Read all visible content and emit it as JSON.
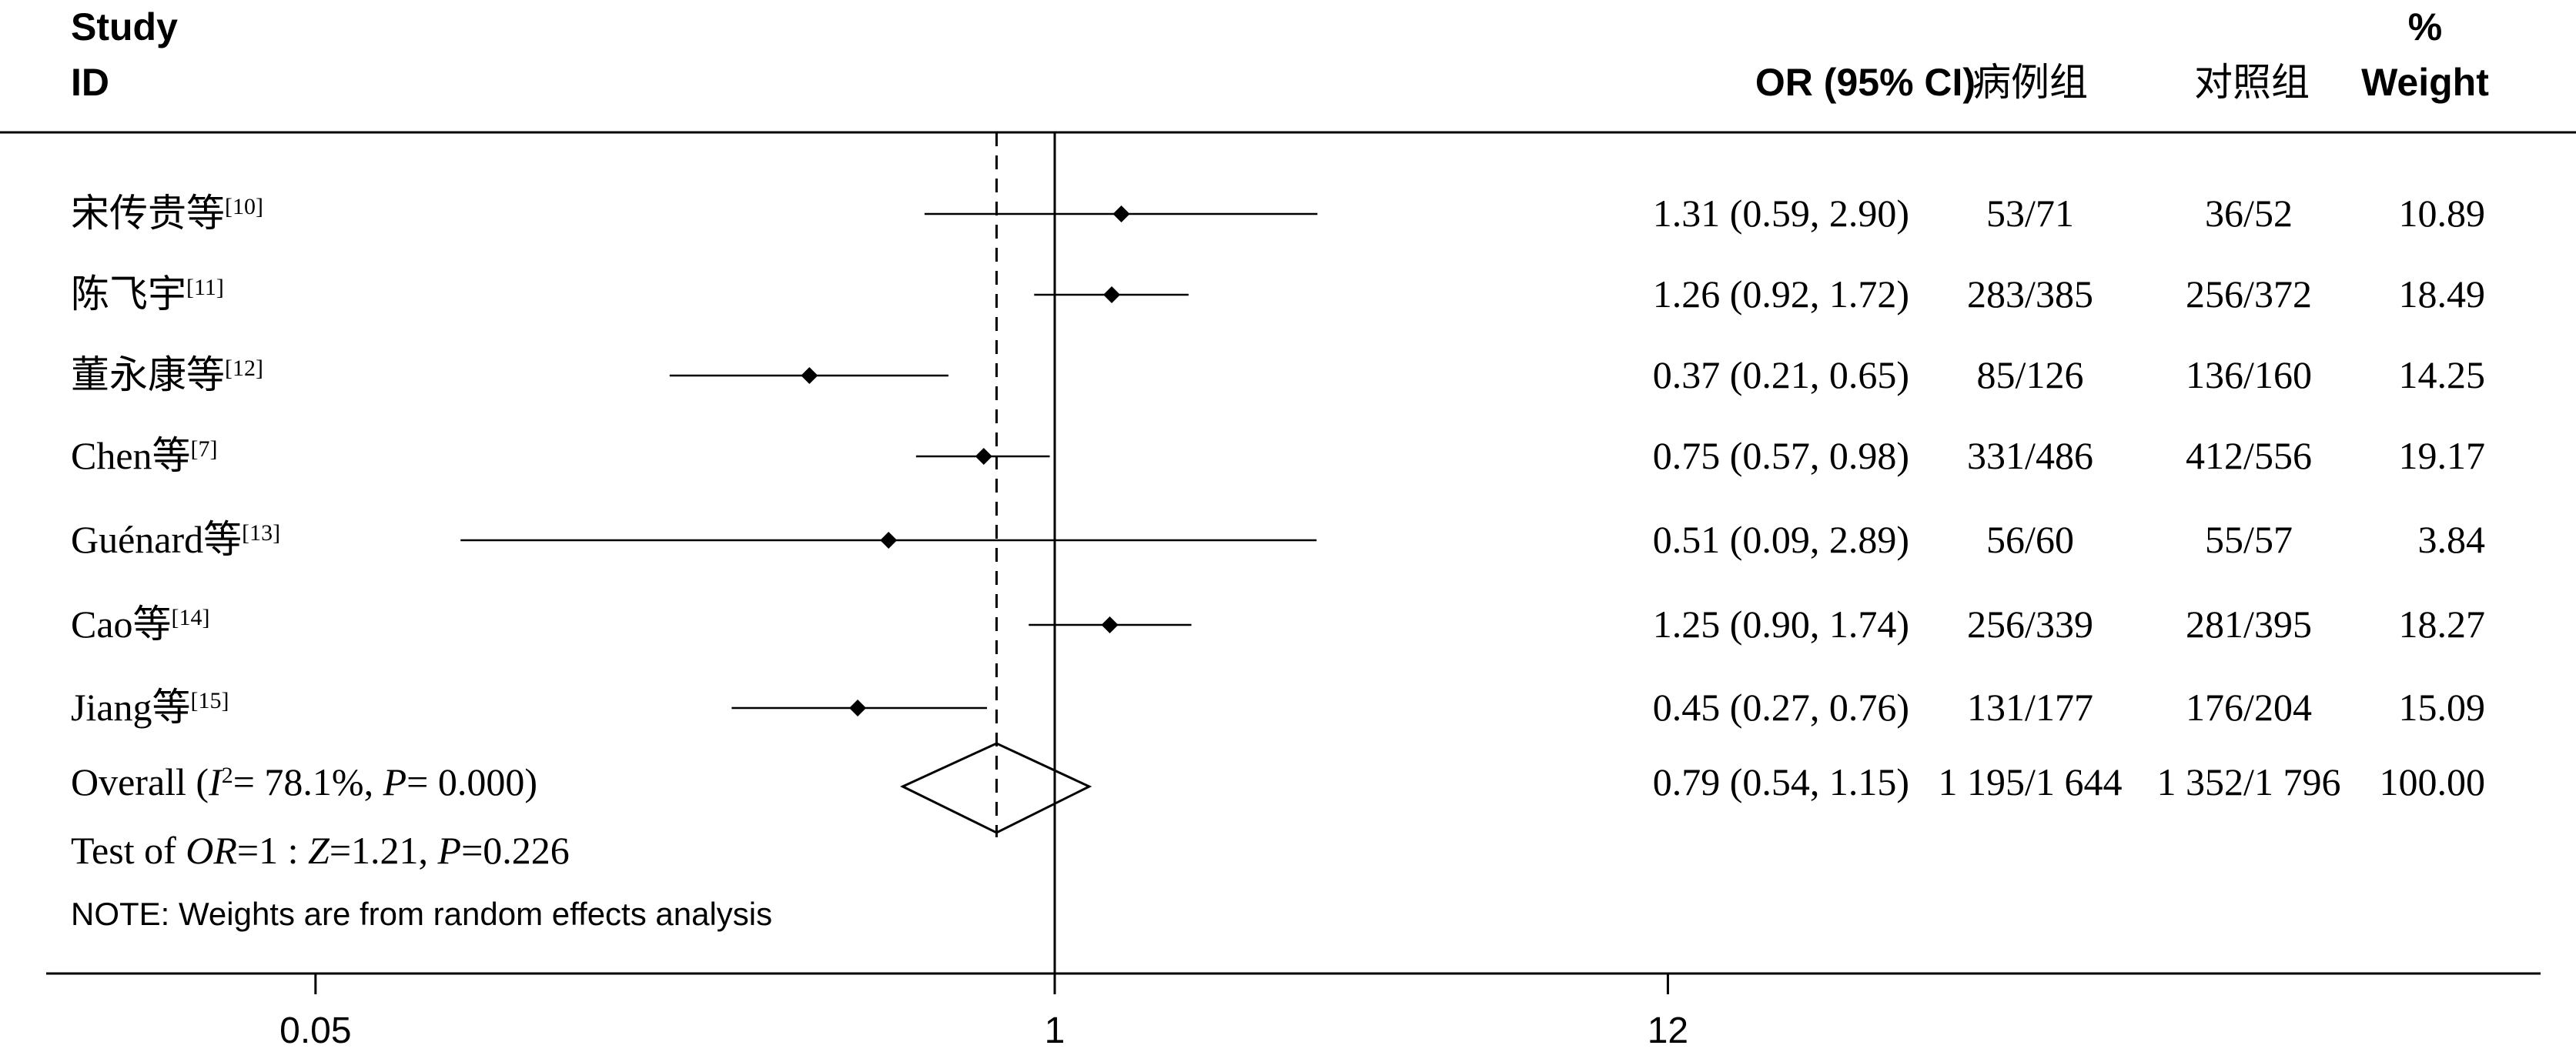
{
  "chart_data": {
    "type": "forest",
    "columns": {
      "study_line1": "Study",
      "study_line2": "ID",
      "or_ci": "OR (95% CI)",
      "case": "病例组",
      "control": "对照组",
      "weight_line1": "%",
      "weight_line2": "Weight"
    },
    "x_scale": "log",
    "x_ticks": [
      {
        "value": 0.05,
        "label": "0.05"
      },
      {
        "value": 1,
        "label": "1"
      },
      {
        "value": 12,
        "label": "12"
      }
    ],
    "null_value": 1,
    "overall_reference": 0.79,
    "studies": [
      {
        "name": "宋传贵等",
        "ref": "[10]",
        "or": 1.31,
        "lower": 0.59,
        "upper": 2.9,
        "or_ci_text": "1.31 (0.59, 2.90)",
        "case": "53/71",
        "control": "36/52",
        "weight": "10.89"
      },
      {
        "name": "陈飞宇",
        "ref": "[11]",
        "or": 1.26,
        "lower": 0.92,
        "upper": 1.72,
        "or_ci_text": "1.26 (0.92, 1.72)",
        "case": "283/385",
        "control": "256/372",
        "weight": "18.49"
      },
      {
        "name": "董永康等",
        "ref": "[12]",
        "or": 0.37,
        "lower": 0.21,
        "upper": 0.65,
        "or_ci_text": "0.37 (0.21, 0.65)",
        "case": "85/126",
        "control": "136/160",
        "weight": "14.25"
      },
      {
        "name": "Chen等",
        "ref": "[7]",
        "or": 0.75,
        "lower": 0.57,
        "upper": 0.98,
        "or_ci_text": "0.75 (0.57, 0.98)",
        "case": "331/486",
        "control": "412/556",
        "weight": "19.17"
      },
      {
        "name": "Guénard等",
        "ref": "[13]",
        "or": 0.51,
        "lower": 0.09,
        "upper": 2.89,
        "or_ci_text": "0.51 (0.09, 2.89)",
        "case": "56/60",
        "control": "55/57",
        "weight": "3.84"
      },
      {
        "name": "Cao等",
        "ref": "[14]",
        "or": 1.25,
        "lower": 0.9,
        "upper": 1.74,
        "or_ci_text": "1.25 (0.90, 1.74)",
        "case": "256/339",
        "control": "281/395",
        "weight": "18.27"
      },
      {
        "name": "Jiang等",
        "ref": "[15]",
        "or": 0.45,
        "lower": 0.27,
        "upper": 0.76,
        "or_ci_text": "0.45 (0.27, 0.76)",
        "case": "131/177",
        "control": "176/204",
        "weight": "15.09"
      }
    ],
    "overall": {
      "label_prefix": "Overall  (",
      "i2_symbol": "I",
      "i2_sup": "2",
      "i2_rest": "= 78.1%, ",
      "p_symbol": "P",
      "p_rest": "= 0.000)",
      "or": 0.79,
      "lower": 0.54,
      "upper": 1.15,
      "or_ci_text": "0.79 (0.54, 1.15)",
      "case": "1 195/1 644",
      "control": "1 352/1 796",
      "weight": "100.00"
    },
    "test": {
      "prefix": "Test of ",
      "or_symbol": "OR",
      "mid": "=1 : ",
      "z_symbol": "Z",
      "z_rest": "=1.21, ",
      "p_symbol": "P",
      "p_rest": "=0.226"
    },
    "note": "NOTE: Weights are from random effects analysis"
  }
}
